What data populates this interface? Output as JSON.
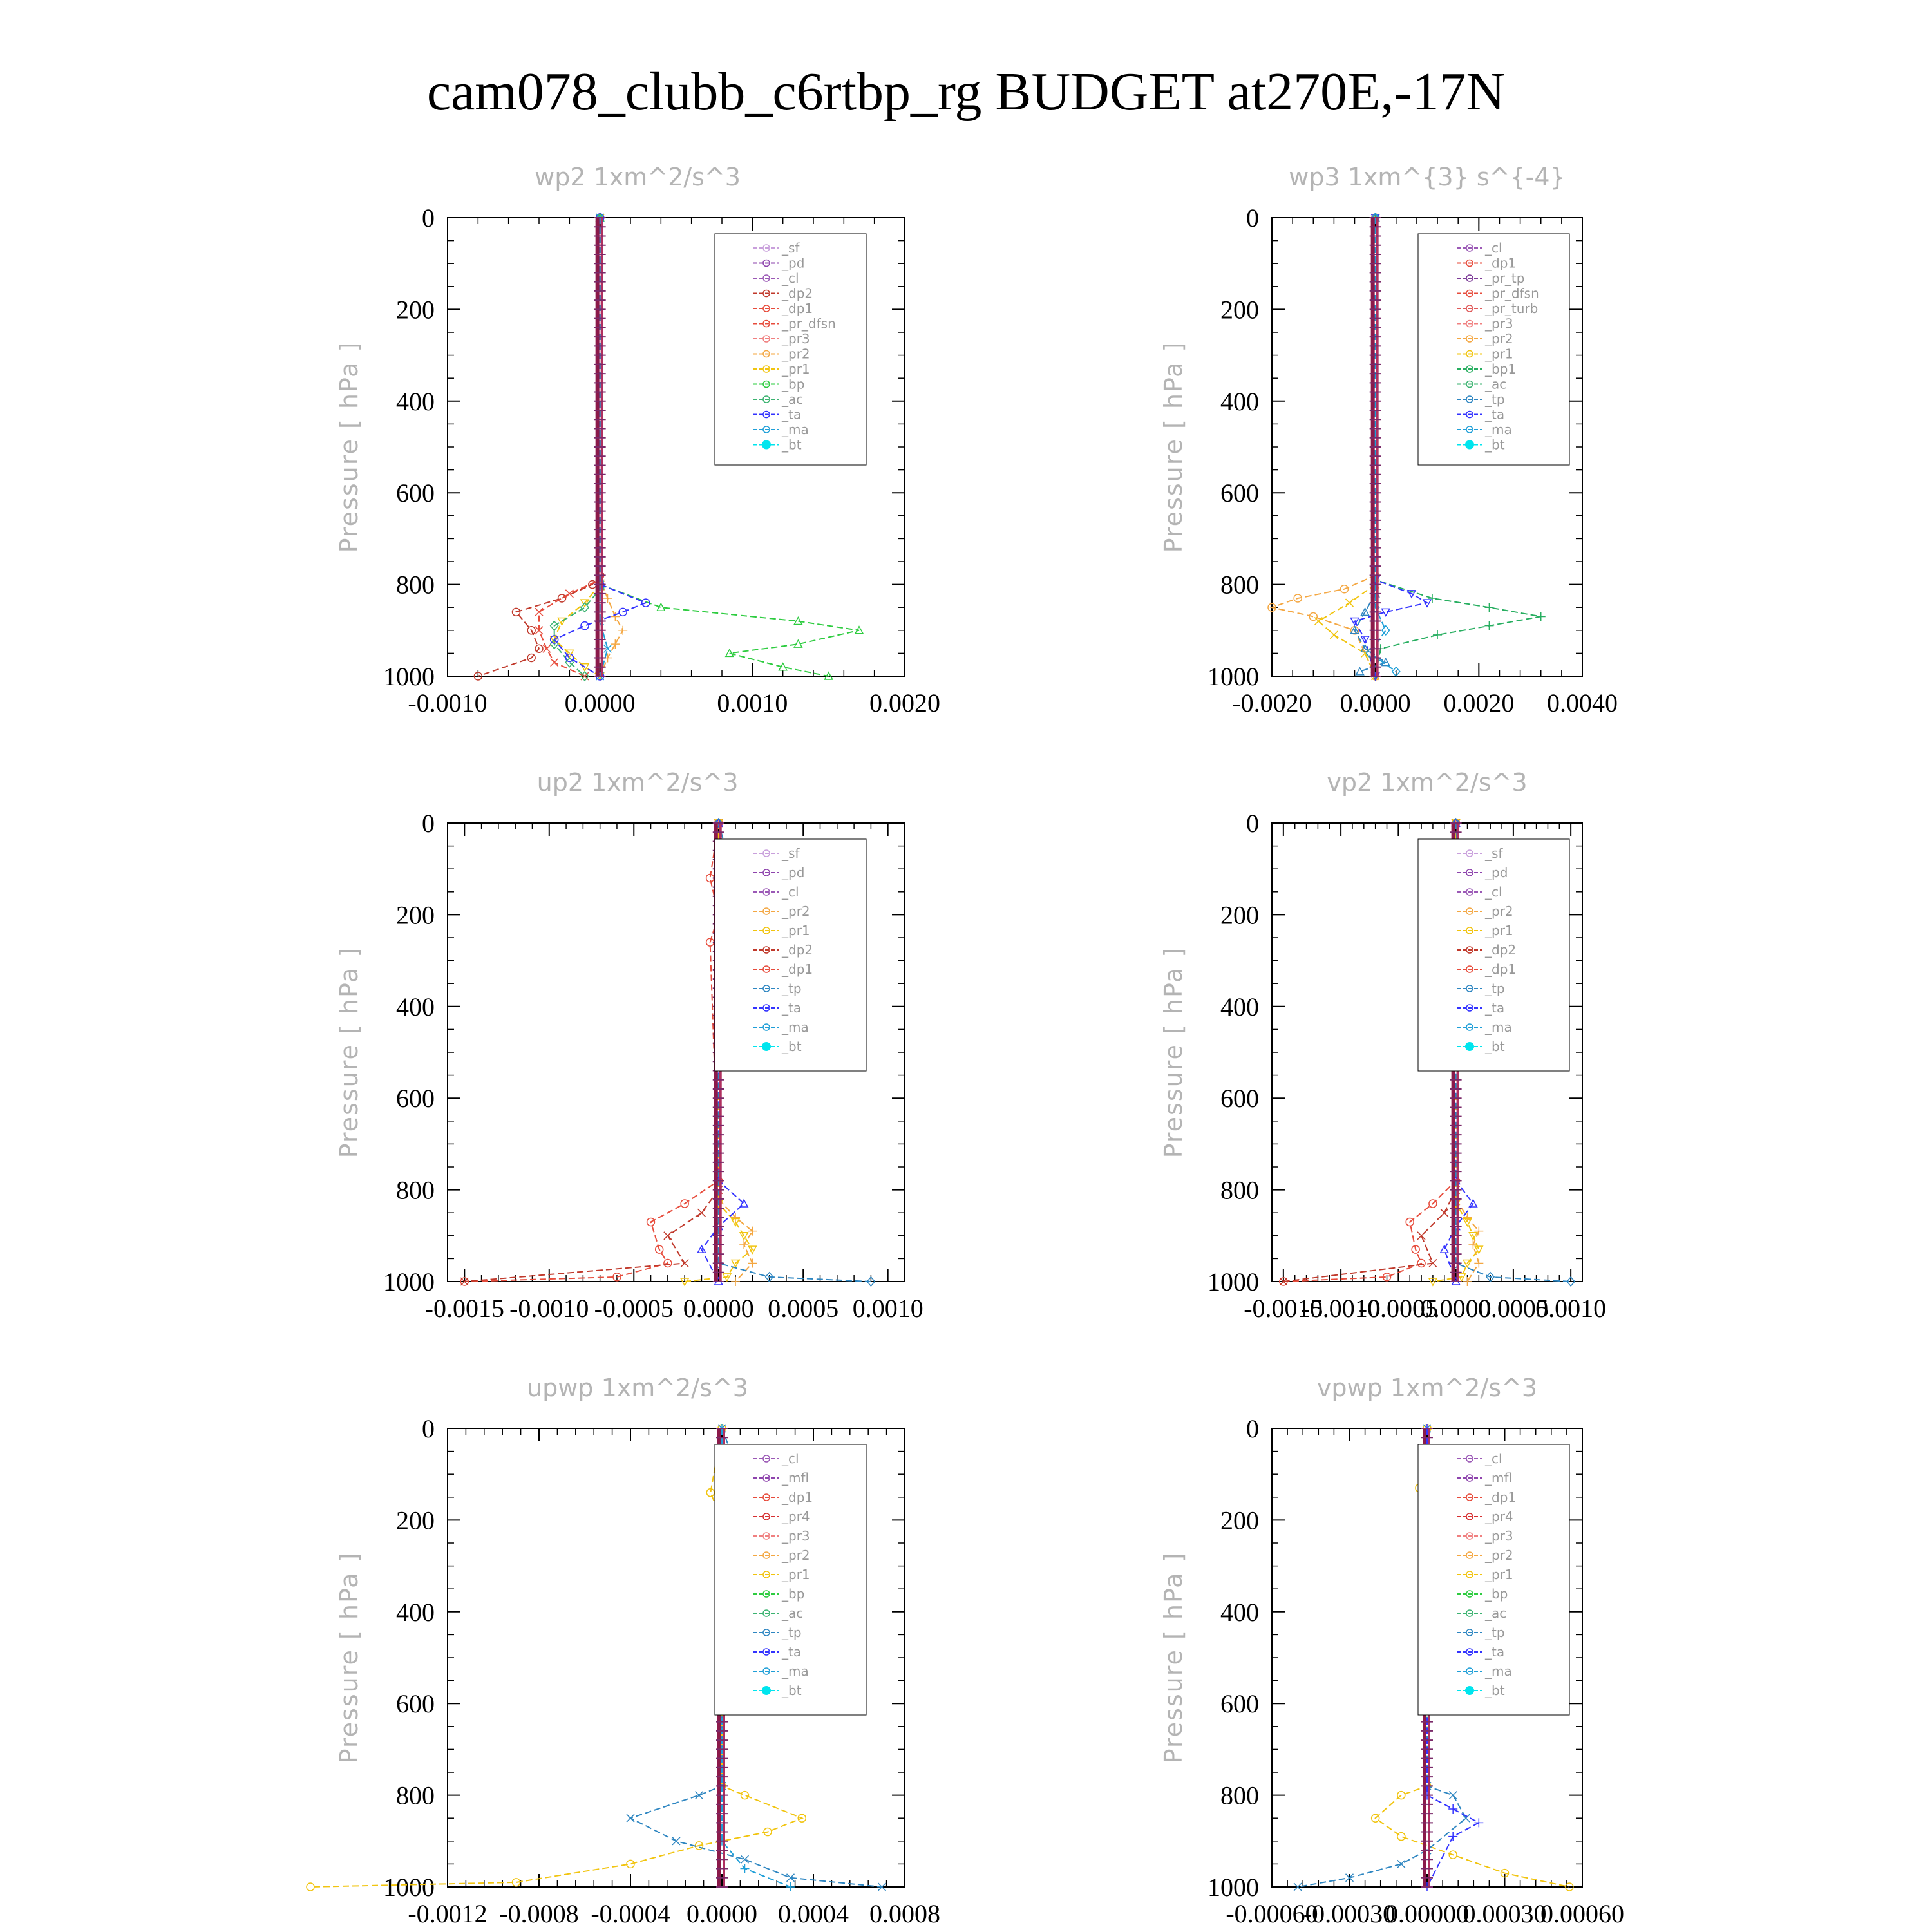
{
  "figure": {
    "title": "cam078_clubb_c6rtbp_rg  BUDGET at270E,-17N"
  },
  "colors": {
    "_sf": "#c9a0dc",
    "_pd": "#8e44ad",
    "_cl": "#9b59b6",
    "_dp2": "#c0392b",
    "_dp1": "#e74c3c",
    "_pr_dfsn": "#e74c3c",
    "_pr3": "#f08080",
    "_pr2": "#f4a742",
    "_pr1": "#f1c40f",
    "_bp": "#2ecc40",
    "_ac": "#3cb371",
    "_ta": "#3333ff",
    "_ma": "#1f9fd8",
    "_bt": "#00e5ee",
    "_pr_tp": "#7d3c98",
    "_pr_turb": "#e05a5a",
    "_bp1": "#27ae60",
    "_tp": "#2e86c1",
    "_mfl": "#8e44ad",
    "_pr4": "#d63031",
    "frame": "#000000",
    "title": "#000000",
    "subtitle": "#b4b4b4"
  },
  "chart_data": [
    {
      "type": "line",
      "title": "wp2   1xm^2/s^3",
      "ylabel": "Pressure [ hPa ]",
      "xlim": [
        -0.001,
        0.002
      ],
      "ylim": [
        1000,
        0
      ],
      "xticks": [
        "-0.0010",
        "0.0000",
        "0.0010",
        "0.0020"
      ],
      "xtick_values": [
        -0.001,
        0,
        0.001,
        0.002
      ],
      "yticks": [
        "0",
        "200",
        "400",
        "600",
        "800",
        "1000"
      ],
      "ytick_values": [
        0,
        200,
        400,
        600,
        800,
        1000
      ],
      "legend_position": "top-right",
      "legend": [
        "_sf",
        "_pd",
        "_cl",
        "_dp2",
        "_dp1",
        "_pr_dfsn",
        "_pr3",
        "_pr2",
        "_pr1",
        "_bp",
        "_ac",
        "_ta",
        "_ma",
        "_bt"
      ],
      "series": [
        {
          "key": "_dp2",
          "x": [
            0,
            0,
            -5e-05,
            -0.00025,
            -0.00055,
            -0.00045,
            -0.0004,
            -0.00045,
            -0.0008
          ],
          "y": [
            0,
            780,
            800,
            830,
            860,
            900,
            940,
            960,
            1000
          ]
        },
        {
          "key": "_dp1",
          "x": [
            0,
            0,
            -0.0002,
            -0.0004,
            -0.0004,
            -0.00035,
            -0.0003,
            -0.0001
          ],
          "y": [
            0,
            790,
            820,
            860,
            900,
            940,
            970,
            1000
          ]
        },
        {
          "key": "_pr2",
          "x": [
            0,
            0,
            5e-05,
            0.0001,
            0.00015,
            0.0001,
            5e-05,
            0
          ],
          "y": [
            0,
            790,
            830,
            870,
            900,
            930,
            960,
            1000
          ]
        },
        {
          "key": "_pr1",
          "x": [
            0,
            0,
            -0.0001,
            -0.00025,
            -0.0003,
            -0.0002,
            -0.0001,
            0
          ],
          "y": [
            0,
            800,
            840,
            880,
            920,
            950,
            980,
            1000
          ]
        },
        {
          "key": "_bp",
          "x": [
            0,
            0,
            0.0004,
            0.0013,
            0.0017,
            0.0013,
            0.00085,
            0.0012,
            0.0015
          ],
          "y": [
            0,
            800,
            850,
            880,
            900,
            930,
            950,
            980,
            1000
          ]
        },
        {
          "key": "_ac",
          "x": [
            0,
            0,
            -0.0001,
            -0.0003,
            -0.0003,
            -0.0002,
            -0.0001
          ],
          "y": [
            0,
            810,
            850,
            890,
            930,
            970,
            1000
          ]
        },
        {
          "key": "_ta",
          "x": [
            0,
            0,
            0.0003,
            0.00015,
            -0.0001,
            -0.0003,
            -0.0002,
            0
          ],
          "y": [
            0,
            800,
            840,
            860,
            890,
            920,
            960,
            1000
          ]
        },
        {
          "key": "_ma",
          "x": [
            0,
            0,
            0,
            5e-05,
            0
          ],
          "y": [
            0,
            800,
            880,
            940,
            1000
          ]
        },
        {
          "key": "_bt",
          "x": [
            0,
            0
          ],
          "y": [
            0,
            1000
          ]
        }
      ]
    },
    {
      "type": "line",
      "title": "wp3   1xm^{3} s^{-4}",
      "ylabel": "Pressure [ hPa ]",
      "xlim": [
        -0.002,
        0.004
      ],
      "ylim": [
        1000,
        0
      ],
      "xticks": [
        "-0.0020",
        "0.0000",
        "0.0020",
        "0.0040"
      ],
      "xtick_values": [
        -0.002,
        0,
        0.002,
        0.004
      ],
      "yticks": [
        "0",
        "200",
        "400",
        "600",
        "800",
        "1000"
      ],
      "ytick_values": [
        0,
        200,
        400,
        600,
        800,
        1000
      ],
      "legend_position": "top-right",
      "legend": [
        "_cl",
        "_dp1",
        "_pr_tp",
        "_pr_dfsn",
        "_pr_turb",
        "_pr3",
        "_pr2",
        "_pr1",
        "_bp1",
        "_ac",
        "_tp",
        "_ta",
        "_ma",
        "_bt"
      ],
      "series": [
        {
          "key": "_pr2",
          "x": [
            0,
            0,
            -0.0006,
            -0.0015,
            -0.002,
            -0.0012,
            -0.0004,
            0
          ],
          "y": [
            0,
            780,
            810,
            830,
            850,
            870,
            900,
            1000
          ]
        },
        {
          "key": "_pr1",
          "x": [
            0,
            0,
            -0.0005,
            -0.0011,
            -0.0008,
            -0.0002,
            0
          ],
          "y": [
            0,
            800,
            840,
            880,
            910,
            950,
            1000
          ]
        },
        {
          "key": "_bp1",
          "x": [
            0,
            0,
            0.0011,
            0.0022,
            0.0032,
            0.0022,
            0.0012,
            0.0001,
            0
          ],
          "y": [
            0,
            790,
            830,
            850,
            870,
            890,
            910,
            940,
            1000
          ]
        },
        {
          "key": "_ta",
          "x": [
            0,
            0,
            0.0007,
            0.001,
            0.0002,
            -0.0004,
            -0.0002,
            0
          ],
          "y": [
            0,
            790,
            820,
            840,
            860,
            880,
            920,
            1000
          ]
        },
        {
          "key": "_tp",
          "x": [
            0,
            0,
            -0.0002,
            -0.0004,
            -0.0002,
            0.0002,
            -0.0003
          ],
          "y": [
            0,
            820,
            860,
            900,
            940,
            970,
            990
          ]
        },
        {
          "key": "_ma",
          "x": [
            0,
            0,
            0.0002,
            -0.0001,
            0.0004
          ],
          "y": [
            0,
            850,
            900,
            950,
            990
          ]
        },
        {
          "key": "_bt",
          "x": [
            0,
            0
          ],
          "y": [
            0,
            1000
          ]
        }
      ]
    },
    {
      "type": "line",
      "title": "up2   1xm^2/s^3",
      "ylabel": "Pressure [ hPa ]",
      "xlim": [
        -0.0016,
        0.0011
      ],
      "ylim": [
        1000,
        0
      ],
      "xticks": [
        "-0.0015",
        "-0.0010",
        "-0.0005",
        "0.0000",
        "0.0005",
        "0.0010"
      ],
      "xtick_values": [
        -0.0015,
        -0.001,
        -0.0005,
        0,
        0.0005,
        0.001
      ],
      "yticks": [
        "0",
        "200",
        "400",
        "600",
        "800",
        "1000"
      ],
      "ytick_values": [
        0,
        200,
        400,
        600,
        800,
        1000
      ],
      "legend_position": "top-right",
      "legend": [
        "_sf",
        "_pd",
        "_cl",
        "_pr2",
        "_pr1",
        "_dp2",
        "_dp1",
        "_tp",
        "_ta",
        "_ma",
        "_bt"
      ],
      "series": [
        {
          "key": "_dp1",
          "x": [
            0,
            -5e-05,
            0,
            -5e-05,
            0,
            -0.0002,
            -0.0004,
            -0.00035,
            -0.0003,
            -0.0006,
            -0.0015
          ],
          "y": [
            0,
            120,
            200,
            260,
            780,
            830,
            870,
            930,
            960,
            990,
            1000
          ]
        },
        {
          "key": "_dp2",
          "x": [
            0,
            0,
            -0.0001,
            -0.0003,
            -0.0002,
            -0.0015
          ],
          "y": [
            0,
            800,
            850,
            900,
            960,
            1000
          ]
        },
        {
          "key": "_pr2",
          "x": [
            0,
            0,
            0.0001,
            0.0002,
            0.00015,
            0.0002,
            0.0001
          ],
          "y": [
            0,
            820,
            860,
            890,
            920,
            960,
            1000
          ]
        },
        {
          "key": "_pr1",
          "x": [
            0,
            0,
            0.0001,
            0.00015,
            0.0002,
            0.0001,
            5e-05,
            -0.0002
          ],
          "y": [
            0,
            830,
            870,
            900,
            930,
            960,
            990,
            1000
          ]
        },
        {
          "key": "_ta",
          "x": [
            0,
            5e-05,
            0,
            0,
            0.00015,
            0,
            -0.0001,
            0
          ],
          "y": [
            0,
            130,
            200,
            780,
            830,
            880,
            930,
            1000
          ]
        },
        {
          "key": "_tp",
          "x": [
            0,
            0.0001,
            0,
            5e-05,
            0,
            0,
            0.0003,
            0.0009
          ],
          "y": [
            0,
            130,
            180,
            250,
            300,
            960,
            990,
            1000
          ]
        },
        {
          "key": "_bt",
          "x": [
            0,
            0
          ],
          "y": [
            0,
            1000
          ]
        }
      ]
    },
    {
      "type": "line",
      "title": "vp2   1xm^2/s^3",
      "ylabel": "Pressure [ hPa ]",
      "xlim": [
        -0.0016,
        0.0011
      ],
      "ylim": [
        1000,
        0
      ],
      "xticks": [
        "-0.0015",
        "-0.0010",
        "-0.0005",
        "0.0000",
        "0.0005",
        "0.0010"
      ],
      "xtick_values": [
        -0.0015,
        -0.001,
        -0.0005,
        0,
        0.0005,
        0.001
      ],
      "yticks": [
        "0",
        "200",
        "400",
        "600",
        "800",
        "1000"
      ],
      "ytick_values": [
        0,
        200,
        400,
        600,
        800,
        1000
      ],
      "legend_position": "top-right",
      "legend": [
        "_sf",
        "_pd",
        "_cl",
        "_pr2",
        "_pr1",
        "_dp2",
        "_dp1",
        "_tp",
        "_ta",
        "_ma",
        "_bt"
      ],
      "series": [
        {
          "key": "_dp1",
          "x": [
            0,
            -5e-05,
            0,
            -5e-05,
            0,
            -0.0002,
            -0.0004,
            -0.00035,
            -0.0003,
            -0.0006,
            -0.0015
          ],
          "y": [
            0,
            120,
            200,
            260,
            780,
            830,
            870,
            930,
            960,
            990,
            1000
          ]
        },
        {
          "key": "_dp2",
          "x": [
            0,
            0,
            -0.0001,
            -0.0003,
            -0.0002,
            -0.0015
          ],
          "y": [
            0,
            800,
            850,
            900,
            960,
            1000
          ]
        },
        {
          "key": "_pr2",
          "x": [
            0,
            0,
            0.0001,
            0.0002,
            0.00015,
            0.0002,
            0.0001
          ],
          "y": [
            0,
            820,
            860,
            890,
            920,
            960,
            1000
          ]
        },
        {
          "key": "_pr1",
          "x": [
            0,
            0,
            0.0001,
            0.00015,
            0.0002,
            0.0001,
            5e-05,
            -0.0002
          ],
          "y": [
            0,
            830,
            870,
            900,
            930,
            960,
            990,
            1000
          ]
        },
        {
          "key": "_ta",
          "x": [
            0,
            5e-05,
            0,
            0,
            0.00015,
            0,
            -0.0001,
            0
          ],
          "y": [
            0,
            130,
            200,
            780,
            830,
            880,
            930,
            1000
          ]
        },
        {
          "key": "_tp",
          "x": [
            0,
            5e-05,
            0,
            0,
            0.0003,
            0.001
          ],
          "y": [
            0,
            200,
            300,
            960,
            990,
            1000
          ]
        },
        {
          "key": "_bt",
          "x": [
            0,
            0
          ],
          "y": [
            0,
            1000
          ]
        }
      ]
    },
    {
      "type": "line",
      "title": "upwp   1xm^2/s^3",
      "ylabel": "Pressure [ hPa ]",
      "xlim": [
        -0.0012,
        0.0008
      ],
      "ylim": [
        1000,
        0
      ],
      "xticks": [
        "-0.0012",
        "-0.0008",
        "-0.0004",
        "0.0000",
        "0.0004",
        "0.0008"
      ],
      "xtick_values": [
        -0.0012,
        -0.0008,
        -0.0004,
        0,
        0.0004,
        0.0008
      ],
      "yticks": [
        "0",
        "200",
        "400",
        "600",
        "800",
        "1000"
      ],
      "ytick_values": [
        0,
        200,
        400,
        600,
        800,
        1000
      ],
      "legend_position": "top-right",
      "legend": [
        "_cl",
        "_mfl",
        "_dp1",
        "_pr4",
        "_pr3",
        "_pr2",
        "_pr1",
        "_bp",
        "_ac",
        "_tp",
        "_ta",
        "_ma",
        "_bt"
      ],
      "series": [
        {
          "key": "_pr1",
          "x": [
            0,
            -5e-05,
            0,
            0,
            0.0001,
            0.00035,
            0.0002,
            -0.0001,
            -0.0004,
            -0.0009,
            -0.0018
          ],
          "y": [
            0,
            140,
            200,
            780,
            800,
            850,
            880,
            910,
            950,
            990,
            1000
          ]
        },
        {
          "key": "_tp",
          "x": [
            0,
            0.0001,
            0,
            0,
            -0.0001,
            -0.0004,
            -0.0002,
            0.0001,
            0.0003,
            0.0007
          ],
          "y": [
            0,
            130,
            200,
            780,
            800,
            850,
            900,
            940,
            980,
            1000
          ]
        },
        {
          "key": "_ma",
          "x": [
            0,
            0,
            0.0001,
            0.0003
          ],
          "y": [
            0,
            900,
            960,
            1000
          ]
        },
        {
          "key": "_bt",
          "x": [
            0,
            0
          ],
          "y": [
            0,
            1000
          ]
        }
      ]
    },
    {
      "type": "line",
      "title": "vpwp   1xm^2/s^3",
      "ylabel": "Pressure [ hPa ]",
      "xlim": [
        -0.0006,
        0.0006
      ],
      "ylim": [
        1000,
        0
      ],
      "xticks": [
        "-0.00060",
        "-0.00030",
        "0.00000",
        "0.00030",
        "0.00060"
      ],
      "xtick_values": [
        -0.0006,
        -0.0003,
        0,
        0.0003,
        0.0006
      ],
      "yticks": [
        "0",
        "200",
        "400",
        "600",
        "800",
        "1000"
      ],
      "ytick_values": [
        0,
        200,
        400,
        600,
        800,
        1000
      ],
      "legend_position": "top-right",
      "legend": [
        "_cl",
        "_mfl",
        "_dp1",
        "_pr4",
        "_pr3",
        "_pr2",
        "_pr1",
        "_bp",
        "_ac",
        "_tp",
        "_ta",
        "_ma",
        "_bt"
      ],
      "series": [
        {
          "key": "_pr1",
          "x": [
            0,
            -3e-05,
            0,
            0,
            -0.0001,
            -0.0002,
            -0.0001,
            0.0001,
            0.0003,
            0.00055
          ],
          "y": [
            0,
            130,
            200,
            780,
            800,
            850,
            890,
            930,
            970,
            1000
          ]
        },
        {
          "key": "_tp",
          "x": [
            0,
            3e-05,
            0,
            0,
            0.0001,
            0.00015,
            0,
            -0.0001,
            -0.0003,
            -0.0005
          ],
          "y": [
            0,
            130,
            200,
            780,
            800,
            850,
            920,
            950,
            980,
            1000
          ]
        },
        {
          "key": "_ta",
          "x": [
            0,
            0,
            0.0001,
            0.0002,
            0.0001,
            0
          ],
          "y": [
            0,
            800,
            830,
            860,
            890,
            1000
          ]
        },
        {
          "key": "_bt",
          "x": [
            0,
            0
          ],
          "y": [
            0,
            1000
          ]
        }
      ]
    }
  ]
}
